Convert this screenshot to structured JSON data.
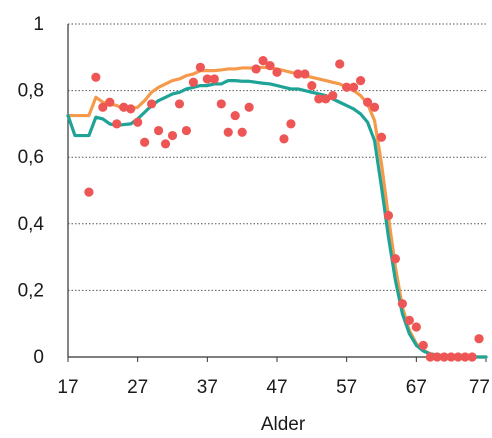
{
  "chart_data": {
    "type": "line",
    "title": "",
    "xlabel": "Alder",
    "ylabel": "",
    "xlim": [
      17,
      77
    ],
    "ylim": [
      0,
      1
    ],
    "x_ticks": [
      17,
      27,
      37,
      47,
      57,
      67,
      77
    ],
    "y_ticks": [
      0,
      0.2,
      0.4,
      0.6,
      0.8,
      1
    ],
    "y_tick_labels": [
      "0",
      "0,2",
      "0,4",
      "0,6",
      "0,8",
      "1"
    ],
    "x_tick_labels": [
      "17",
      "27",
      "37",
      "47",
      "57",
      "67",
      "77"
    ],
    "grid": "horizontal-dotted",
    "legend": "none",
    "series": [
      {
        "kind": "line",
        "color": "#f59a4a",
        "x": [
          17,
          18,
          19,
          20,
          21,
          22,
          23,
          24,
          25,
          26,
          27,
          28,
          29,
          30,
          31,
          32,
          33,
          34,
          35,
          36,
          37,
          38,
          39,
          40,
          41,
          42,
          43,
          44,
          45,
          46,
          47,
          48,
          49,
          50,
          51,
          52,
          53,
          54,
          55,
          56,
          57,
          58,
          59,
          60,
          61,
          62,
          63,
          64,
          65,
          66,
          67,
          68,
          69,
          70,
          71,
          72,
          73,
          74,
          75,
          76,
          77
        ],
        "y": [
          0.725,
          0.725,
          0.725,
          0.725,
          0.78,
          0.765,
          0.76,
          0.755,
          0.745,
          0.745,
          0.75,
          0.77,
          0.795,
          0.81,
          0.82,
          0.83,
          0.835,
          0.845,
          0.85,
          0.86,
          0.86,
          0.86,
          0.862,
          0.865,
          0.865,
          0.868,
          0.868,
          0.868,
          0.87,
          0.868,
          0.865,
          0.86,
          0.855,
          0.85,
          0.845,
          0.84,
          0.835,
          0.83,
          0.825,
          0.82,
          0.81,
          0.8,
          0.785,
          0.76,
          0.71,
          0.58,
          0.42,
          0.27,
          0.15,
          0.08,
          0.04,
          0.02,
          0.01,
          0.006,
          0.004,
          0.003,
          0.002,
          0.001,
          0.001,
          0.0,
          0.0
        ]
      },
      {
        "kind": "line",
        "color": "#1fa397",
        "x": [
          17,
          18,
          19,
          20,
          21,
          22,
          23,
          24,
          25,
          26,
          27,
          28,
          29,
          30,
          31,
          32,
          33,
          34,
          35,
          36,
          37,
          38,
          39,
          40,
          41,
          42,
          43,
          44,
          45,
          46,
          47,
          48,
          49,
          50,
          51,
          52,
          53,
          54,
          55,
          56,
          57,
          58,
          59,
          60,
          61,
          62,
          63,
          64,
          65,
          66,
          67,
          68,
          69,
          70,
          71,
          72,
          73,
          74,
          75,
          76,
          77
        ],
        "y": [
          0.725,
          0.665,
          0.665,
          0.665,
          0.72,
          0.715,
          0.7,
          0.695,
          0.698,
          0.7,
          0.715,
          0.735,
          0.755,
          0.77,
          0.78,
          0.79,
          0.795,
          0.805,
          0.81,
          0.815,
          0.815,
          0.82,
          0.82,
          0.83,
          0.83,
          0.828,
          0.828,
          0.825,
          0.822,
          0.82,
          0.815,
          0.81,
          0.805,
          0.805,
          0.8,
          0.795,
          0.79,
          0.785,
          0.775,
          0.765,
          0.755,
          0.745,
          0.73,
          0.705,
          0.65,
          0.51,
          0.36,
          0.23,
          0.13,
          0.07,
          0.035,
          0.018,
          0.009,
          0.005,
          0.003,
          0.002,
          0.001,
          0.001,
          0.0,
          0.0,
          0.0
        ]
      },
      {
        "kind": "scatter",
        "color": "#ee5555",
        "x": [
          20,
          21,
          22,
          23,
          24,
          25,
          26,
          27,
          28,
          29,
          30,
          31,
          32,
          33,
          34,
          35,
          36,
          37,
          38,
          39,
          40,
          41,
          42,
          43,
          44,
          45,
          46,
          47,
          48,
          49,
          50,
          51,
          52,
          53,
          54,
          55,
          56,
          57,
          58,
          59,
          60,
          61,
          62,
          63,
          64,
          65,
          66,
          67,
          68,
          69,
          70,
          71,
          72,
          73,
          74,
          75,
          76
        ],
        "y": [
          0.495,
          0.84,
          0.75,
          0.765,
          0.7,
          0.75,
          0.745,
          0.705,
          0.645,
          0.76,
          0.68,
          0.64,
          0.665,
          0.76,
          0.68,
          0.825,
          0.87,
          0.835,
          0.835,
          0.76,
          0.675,
          0.725,
          0.675,
          0.75,
          0.865,
          0.89,
          0.875,
          0.855,
          0.655,
          0.7,
          0.85,
          0.85,
          0.815,
          0.775,
          0.775,
          0.785,
          0.88,
          0.81,
          0.81,
          0.83,
          0.765,
          0.75,
          0.66,
          0.425,
          0.295,
          0.16,
          0.11,
          0.09,
          0.035,
          0.0,
          0.0,
          0.0,
          0.0,
          0.0,
          0.0,
          0.0,
          0.055
        ]
      }
    ]
  }
}
